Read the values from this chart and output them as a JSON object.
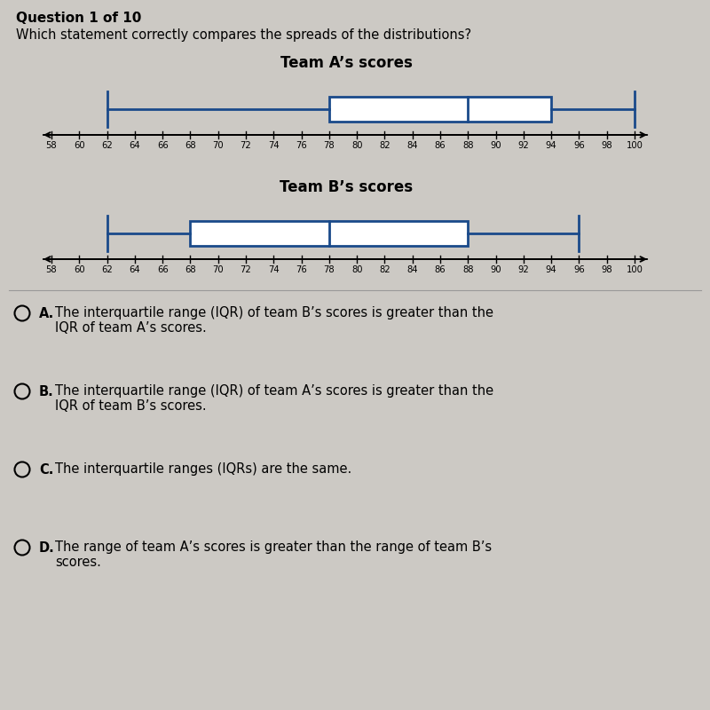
{
  "title": "Question 1 of 10",
  "question": "Which statement correctly compares the spreads of the distributions?",
  "background_color": "#ccc9c4",
  "box_color": "#1a4a8a",
  "teamA": {
    "title": "Team A’s scores",
    "min": 62,
    "q1": 78,
    "median": 88,
    "q3": 94,
    "max": 100
  },
  "teamB": {
    "title": "Team B’s scores",
    "min": 62,
    "q1": 68,
    "median": 78,
    "q3": 88,
    "max": 96
  },
  "axis_min": 58,
  "axis_max": 100,
  "tick_step": 2,
  "choices": [
    {
      "label": "A.",
      "line1": "The interquartile range (IQR) of team B’s scores is greater than the",
      "line2": "IQR of team A’s scores."
    },
    {
      "label": "B.",
      "line1": "The interquartile range (IQR) of team A’s scores is greater than the",
      "line2": "IQR of team B’s scores."
    },
    {
      "label": "C.",
      "line1": "The interquartile ranges (IQRs) are the same.",
      "line2": ""
    },
    {
      "label": "D.",
      "line1": "The range of team A’s scores is greater than the range of team B’s",
      "line2": "scores."
    }
  ]
}
